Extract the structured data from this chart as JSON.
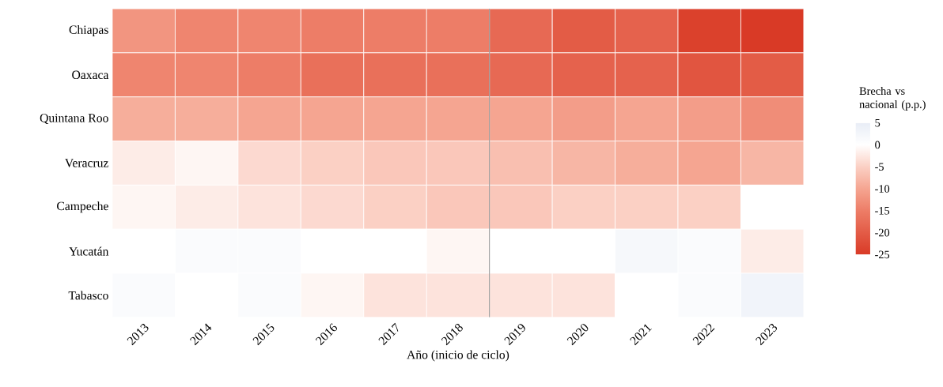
{
  "chart_data": {
    "type": "heatmap",
    "xlabel": "Año (inicio de ciclo)",
    "clabel": "Brecha vs nacional (p.p.)",
    "categories": [
      "2013",
      "2014",
      "2015",
      "2016",
      "2017",
      "2018",
      "2019",
      "2020",
      "2021",
      "2022",
      "2023"
    ],
    "y_categories": [
      "Chiapas",
      "Oaxaca",
      "Quintana Roo",
      "Veracruz",
      "Campeche",
      "Yucatán",
      "Tabasco"
    ],
    "cells": [
      [
        -12,
        -14,
        -14,
        -15,
        -15,
        -15,
        -18,
        -20,
        -19,
        -24,
        -25
      ],
      [
        -14,
        -14,
        -15,
        -17,
        -17,
        -17,
        -18,
        -19,
        -19,
        -21,
        -20
      ],
      [
        -9,
        -9,
        -10,
        -10,
        -10,
        -10,
        -10,
        -11,
        -10,
        -11,
        -13
      ],
      [
        -2,
        -1,
        -4,
        -5,
        -6,
        -6,
        -7,
        -8,
        -9,
        -10,
        -8
      ],
      [
        -1,
        -2,
        -3,
        -4,
        -5,
        -6,
        -6,
        -5,
        -5,
        -5,
        0
      ],
      [
        0,
        1,
        1,
        0,
        0,
        -1,
        0,
        0,
        2,
        1,
        -2
      ],
      [
        1,
        0,
        1,
        -1,
        -3,
        -3,
        -3,
        -3,
        0,
        1,
        3
      ]
    ],
    "clim": [
      -25,
      5
    ],
    "cticks": [
      -25,
      -20,
      -15,
      -10,
      -5,
      0,
      5
    ],
    "grid": false
  }
}
